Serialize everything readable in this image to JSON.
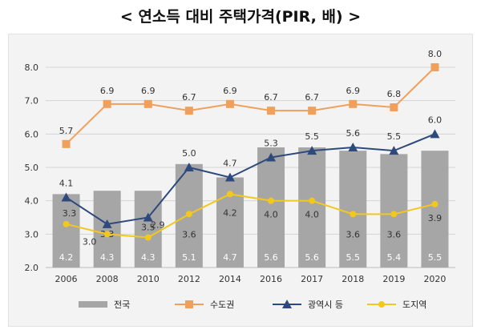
{
  "title": "< 연소득 대비 주택가격(PIR, 배) >",
  "chart_data": {
    "type": "bar",
    "categories": [
      "2006",
      "2008",
      "2010",
      "2012",
      "2014",
      "2016",
      "2017",
      "2018",
      "2019",
      "2020"
    ],
    "ylim": [
      2.0,
      8.0
    ],
    "yticks": [
      "2.0",
      "3.0",
      "4.0",
      "5.0",
      "6.0",
      "7.0",
      "8.0"
    ],
    "grid": true,
    "legend": "bottom",
    "bar": {
      "name": "전국",
      "values": [
        4.2,
        4.3,
        4.3,
        5.1,
        4.7,
        5.6,
        5.6,
        5.5,
        5.4,
        5.5
      ],
      "color": "#a6a6a6"
    },
    "series": [
      {
        "name": "수도권",
        "values": [
          5.7,
          6.9,
          6.9,
          6.7,
          6.9,
          6.7,
          6.7,
          6.9,
          6.8,
          8.0
        ],
        "color": "#f0a05a",
        "marker": "square"
      },
      {
        "name": "광역시 등",
        "values": [
          4.1,
          3.3,
          3.5,
          5.0,
          4.7,
          5.3,
          5.5,
          5.6,
          5.5,
          6.0
        ],
        "color": "#2e4a7d",
        "marker": "triangle"
      },
      {
        "name": "도지역",
        "values": [
          3.3,
          3.0,
          2.9,
          3.6,
          4.2,
          4.0,
          4.0,
          3.6,
          3.6,
          3.9
        ],
        "color": "#f2c81e",
        "marker": "circle"
      }
    ]
  }
}
